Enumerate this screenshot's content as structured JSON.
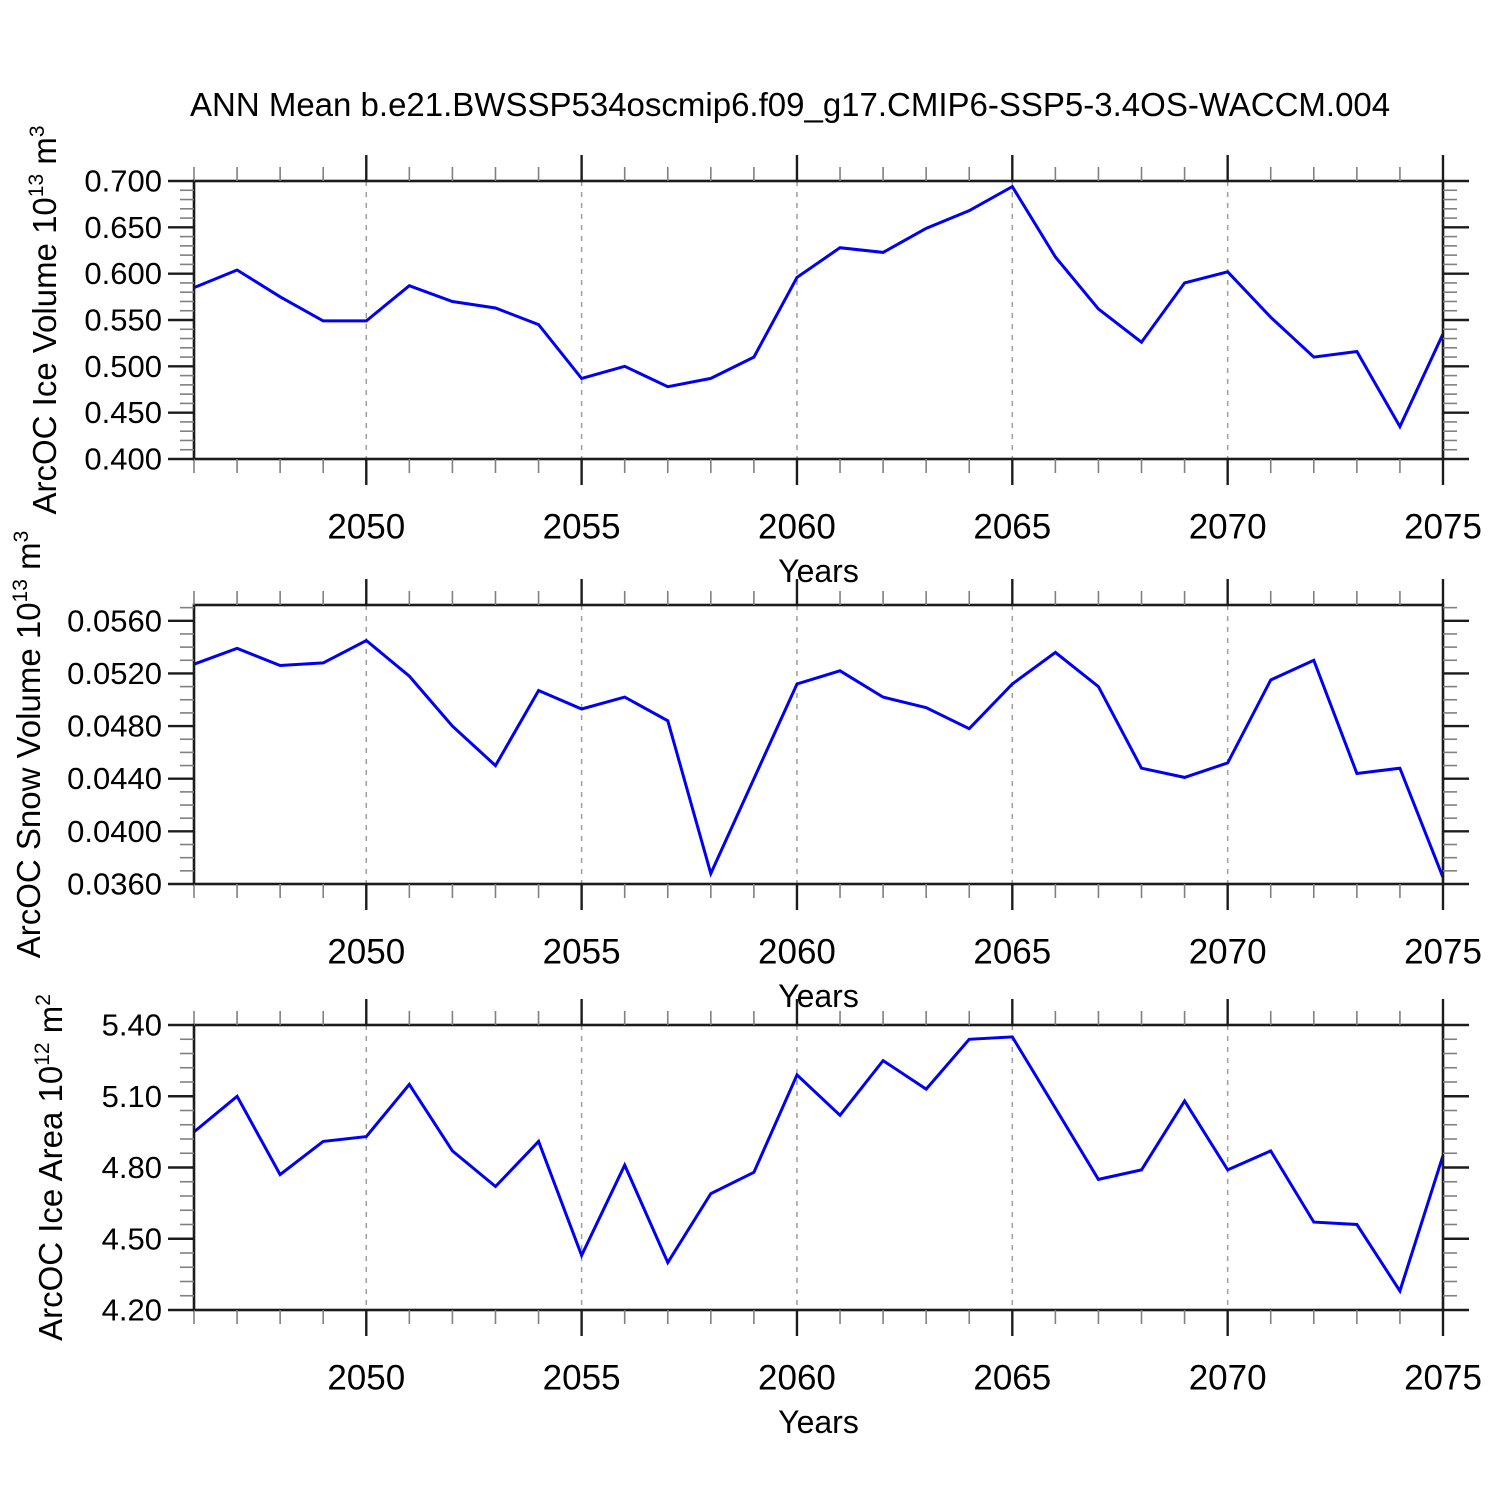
{
  "title": "ANN Mean b.e21.BWSSP534oscmip6.f09_g17.CMIP6-SSP5-3.4OS-WACCM.004",
  "colors": {
    "line": "#0000f5",
    "frame": "#1c1c1c",
    "major_tick": "#1c1c1c",
    "minor_tick": "#808080",
    "grid": "#9e9e9e",
    "text": "#000000",
    "background": "#ffffff"
  },
  "x_axis": {
    "label": "Years",
    "start": 2046,
    "end": 2075,
    "minor_step": 1,
    "major_ticks": [
      {
        "year": 2050,
        "label": "2050"
      },
      {
        "year": 2055,
        "label": "2055"
      },
      {
        "year": 2060,
        "label": "2060"
      },
      {
        "year": 2065,
        "label": "2065"
      },
      {
        "year": 2070,
        "label": "2070"
      },
      {
        "year": 2075,
        "label": "2075"
      }
    ],
    "grid_years": [
      2050,
      2055,
      2060,
      2065,
      2070
    ]
  },
  "chart_data": [
    {
      "type": "line",
      "name": "ice-volume",
      "ylabel": {
        "prefix": "ArcOC Ice Volume 10",
        "power": "13",
        "unit": "m",
        "unit_power": "3"
      },
      "xlabel": "Years",
      "x": [
        2046,
        2047,
        2048,
        2049,
        2050,
        2051,
        2052,
        2053,
        2054,
        2055,
        2056,
        2057,
        2058,
        2059,
        2060,
        2061,
        2062,
        2063,
        2064,
        2065,
        2066,
        2067,
        2068,
        2069,
        2070,
        2071,
        2072,
        2073,
        2074,
        2075
      ],
      "values": [
        0.585,
        0.604,
        0.575,
        0.549,
        0.549,
        0.587,
        0.57,
        0.563,
        0.545,
        0.487,
        0.5,
        0.478,
        0.487,
        0.51,
        0.596,
        0.628,
        0.623,
        0.649,
        0.668,
        0.694,
        0.618,
        0.562,
        0.526,
        0.59,
        0.602,
        0.553,
        0.51,
        0.516,
        0.435,
        0.535
      ],
      "ylim": [
        0.4,
        0.7
      ],
      "yticks": [
        {
          "v": 0.7,
          "label": "0.700"
        },
        {
          "v": 0.65,
          "label": "0.650"
        },
        {
          "v": 0.6,
          "label": "0.600"
        },
        {
          "v": 0.55,
          "label": "0.550"
        },
        {
          "v": 0.5,
          "label": "0.500"
        },
        {
          "v": 0.45,
          "label": "0.450"
        },
        {
          "v": 0.4,
          "label": "0.400"
        }
      ],
      "yminor_step": 0.01,
      "grid": "dashed-vertical",
      "legend": "none"
    },
    {
      "type": "line",
      "name": "snow-volume",
      "ylabel": {
        "prefix": "ArcOC Snow Volume 10",
        "power": "13",
        "unit": "m",
        "unit_power": "3"
      },
      "xlabel": "Years",
      "x": [
        2046,
        2047,
        2048,
        2049,
        2050,
        2051,
        2052,
        2053,
        2054,
        2055,
        2056,
        2057,
        2058,
        2059,
        2060,
        2061,
        2062,
        2063,
        2064,
        2065,
        2066,
        2067,
        2068,
        2069,
        2070,
        2071,
        2072,
        2073,
        2074,
        2075
      ],
      "values": [
        0.0527,
        0.0539,
        0.0526,
        0.0528,
        0.0545,
        0.0518,
        0.048,
        0.045,
        0.0507,
        0.0493,
        0.0502,
        0.0484,
        0.0368,
        0.044,
        0.0512,
        0.0522,
        0.0502,
        0.0494,
        0.0478,
        0.0512,
        0.0536,
        0.051,
        0.0448,
        0.0441,
        0.0452,
        0.0515,
        0.053,
        0.0444,
        0.0448,
        0.0365
      ],
      "ylim": [
        0.036,
        0.0572
      ],
      "yticks": [
        {
          "v": 0.056,
          "label": "0.0560"
        },
        {
          "v": 0.052,
          "label": "0.0520"
        },
        {
          "v": 0.048,
          "label": "0.0480"
        },
        {
          "v": 0.044,
          "label": "0.0440"
        },
        {
          "v": 0.04,
          "label": "0.0400"
        },
        {
          "v": 0.036,
          "label": "0.0360"
        }
      ],
      "yminor_step": 0.001,
      "grid": "dashed-vertical",
      "legend": "none"
    },
    {
      "type": "line",
      "name": "ice-area",
      "ylabel": {
        "prefix": "ArcOC Ice Area 10",
        "power": "12",
        "unit": "m",
        "unit_power": "2"
      },
      "xlabel": "Years",
      "x": [
        2046,
        2047,
        2048,
        2049,
        2050,
        2051,
        2052,
        2053,
        2054,
        2055,
        2056,
        2057,
        2058,
        2059,
        2060,
        2061,
        2062,
        2063,
        2064,
        2065,
        2066,
        2067,
        2068,
        2069,
        2070,
        2071,
        2072,
        2073,
        2074,
        2075
      ],
      "values": [
        4.95,
        5.1,
        4.77,
        4.91,
        4.93,
        5.15,
        4.87,
        4.72,
        4.91,
        4.43,
        4.81,
        4.4,
        4.69,
        4.78,
        5.19,
        5.02,
        5.25,
        5.13,
        5.34,
        5.35,
        5.05,
        4.75,
        4.79,
        5.08,
        4.79,
        4.87,
        4.57,
        4.56,
        4.28,
        4.85
      ],
      "ylim": [
        4.2,
        5.4
      ],
      "yticks": [
        {
          "v": 5.4,
          "label": "5.40"
        },
        {
          "v": 5.1,
          "label": "5.10"
        },
        {
          "v": 4.8,
          "label": "4.80"
        },
        {
          "v": 4.5,
          "label": "4.50"
        },
        {
          "v": 4.2,
          "label": "4.20"
        }
      ],
      "yminor_step": 0.06,
      "grid": "dashed-vertical",
      "legend": "none"
    }
  ]
}
